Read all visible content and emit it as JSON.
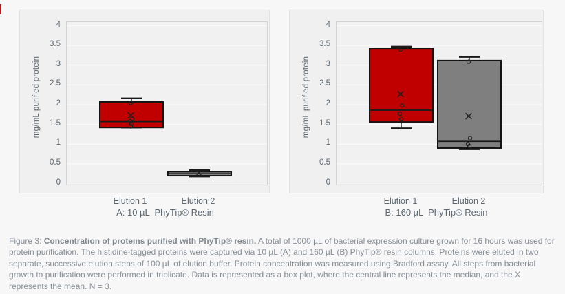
{
  "page": {
    "background": "#f7f7f7",
    "accent_red": "#c00000",
    "box_gray": "#7f7f7f"
  },
  "caption": {
    "prefix": "Figure 3: ",
    "bold": "Concentration of proteins purified with PhyTip® resin.",
    "body": " A total of 1000 µL of bacterial expression culture grown for 16 hours was used for protein purification. The histidine-tagged proteins were captured via 10 µL (A) and 160 µL (B) PhyTip® resin columns. Proteins were eluted in two separate, successive elution steps of 100 µL of elution buffer. Protein concentration was measured using Bradford assay. All steps from bacterial growth to purification were performed in triplicate. Data is represented as a box plot, where the central line represents the median, and the X represents the mean. N = 3."
  },
  "chart_data": [
    {
      "type": "box",
      "title": "A: 10 µL  PhyTip® Resin",
      "ylabel": "mg/mL purified protein",
      "xlabel": "",
      "categories": [
        "Elution 1",
        "Elution 2"
      ],
      "ylim": [
        0,
        4
      ],
      "yticks": [
        0,
        0.5,
        1,
        1.5,
        2,
        2.5,
        3,
        3.5,
        4
      ],
      "grid": true,
      "legend": "none",
      "series": [
        {
          "name": "Elution 1",
          "fill": "#c00000",
          "q1": 1.42,
          "median": 1.57,
          "q3": 2.07,
          "whisker_low": 1.42,
          "whisker_high": 2.16,
          "mean": 1.73,
          "points": [
            2.05,
            1.64,
            1.58,
            1.52,
            1.45
          ]
        },
        {
          "name": "Elution 2",
          "fill": "#7f7f7f",
          "q1": 0.2,
          "median": 0.25,
          "q3": 0.3,
          "whisker_low": 0.18,
          "whisker_high": 0.34,
          "mean": 0.27,
          "points": [
            0.22
          ]
        }
      ]
    },
    {
      "type": "box",
      "title": "B: 160 µL  PhyTip® Resin",
      "ylabel": "mg/mL purified protein",
      "xlabel": "",
      "categories": [
        "Elution 1",
        "Elution 2"
      ],
      "ylim": [
        0,
        4
      ],
      "yticks": [
        0,
        0.5,
        1,
        1.5,
        2,
        2.5,
        3,
        3.5,
        4
      ],
      "grid": true,
      "legend": "none",
      "series": [
        {
          "name": "Elution 1",
          "fill": "#c00000",
          "q1": 1.56,
          "median": 1.86,
          "q3": 3.43,
          "whisker_low": 1.4,
          "whisker_high": 3.47,
          "mean": 2.27,
          "points": [
            3.4,
            1.98,
            1.77,
            1.63
          ]
        },
        {
          "name": "Elution 2",
          "fill": "#7f7f7f",
          "q1": 0.9,
          "median": 1.07,
          "q3": 3.12,
          "whisker_low": 0.87,
          "whisker_high": 3.21,
          "mean": 1.71,
          "points": [
            3.09,
            1.15,
            1.0,
            0.95
          ]
        }
      ]
    }
  ]
}
